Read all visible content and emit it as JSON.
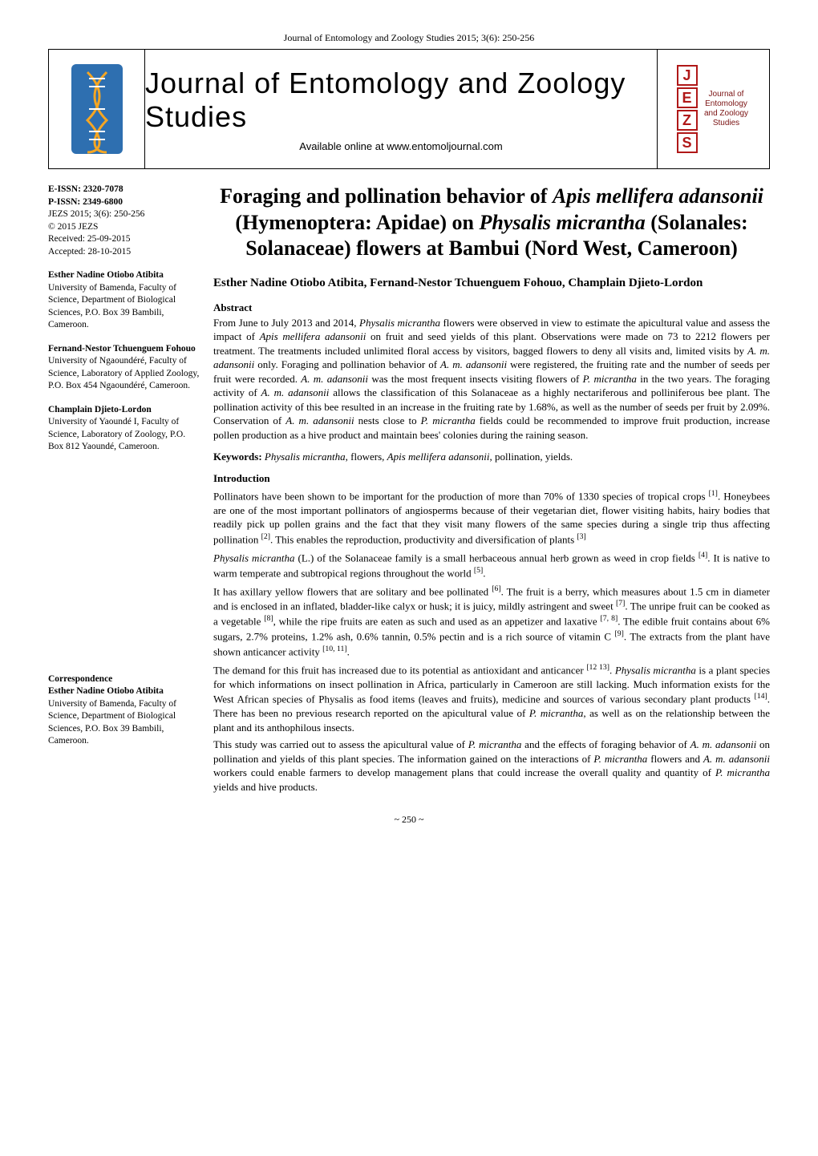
{
  "running_header": "Journal of Entomology and Zoology Studies 2015; 3(6): 250-256",
  "masthead": {
    "title": "Journal of Entomology and Zoology Studies",
    "subtitle": "Available online at www.entomoljournal.com",
    "badge_letters": [
      "J",
      "E",
      "Z",
      "S"
    ],
    "badge_caption": "Journal of Entomology and Zoology Studies",
    "badge_border_color": "#b01818",
    "badge_text_color": "#b01818"
  },
  "sidebar": {
    "issn": {
      "e_issn_label": "E-ISSN: 2320-7078",
      "p_issn_label": "P-ISSN: 2349-6800",
      "citation": "JEZS 2015; 3(6): 250-256",
      "copyright": "© 2015 JEZS",
      "received": "Received: 25-09-2015",
      "accepted": "Accepted: 28-10-2015"
    },
    "authors": [
      {
        "name": "Esther Nadine Otiobo Atibita",
        "affil": "University of Bamenda, Faculty of Science, Department of Biological Sciences, P.O. Box 39 Bambili, Cameroon."
      },
      {
        "name": "Fernand-Nestor Tchuenguem Fohouo",
        "affil": "University of Ngaoundéré, Faculty of Science, Laboratory of Applied Zoology, P.O. Box 454 Ngaoundéré, Cameroon."
      },
      {
        "name": "Champlain Djieto-Lordon",
        "affil": "University of Yaoundé I, Faculty of Science, Laboratory of Zoology, P.O. Box 812 Yaoundé, Cameroon."
      }
    ],
    "correspondence": {
      "label": "Correspondence",
      "name": "Esther Nadine Otiobo Atibita",
      "affil": "University of Bamenda, Faculty of Science, Department of Biological Sciences, P.O. Box 39 Bambili, Cameroon."
    }
  },
  "paper": {
    "title_html": "Foraging and pollination behavior of <em>Apis mellifera adansonii</em> (Hymenoptera: Apidae) on <em>Physalis micrantha</em> (Solanales: Solanaceae) flowers at Bambui (Nord West, Cameroon)",
    "authors_line": "Esther Nadine Otiobo Atibita, Fernand-Nestor Tchuenguem Fohouo, Champlain Djieto-Lordon",
    "abstract_label": "Abstract",
    "abstract_html": "From June to July 2013 and 2014, <em>Physalis micrantha</em> flowers were observed in view to estimate the apicultural value and assess the impact of <em>Apis mellifera adansonii</em> on fruit and seed yields of this plant. Observations were made on 73 to 2212 flowers per treatment. The treatments included unlimited floral access by visitors, bagged flowers to deny all visits and, limited visits by <em>A. m. adansonii</em> only. Foraging and pollination behavior of <em>A. m. adansonii</em> were registered, the fruiting rate and the number of seeds per fruit were recorded. <em>A. m. adansonii</em> was the most frequent insects visiting flowers of <em>P. micrantha</em> in the two years. The foraging activity of <em>A. m. adansonii</em> allows the classification of this Solanaceae as a highly nectariferous and polliniferous bee plant. The pollination activity of this bee resulted in an increase in the fruiting rate by 1.68%, as well as the number of seeds per fruit by 2.09%. Conservation of <em>A. m. adansonii</em> nests close to <em>P. micrantha</em> fields could be recommended to improve fruit production, increase pollen production as a hive product and maintain bees' colonies during the raining season.",
    "keywords_label": "Keywords:",
    "keywords_html": "<em>Physalis micrantha</em>, flowers, <em>Apis mellifera adansonii</em>, pollination, yields.",
    "intro_label": "Introduction",
    "intro_paragraphs_html": [
      "Pollinators have been shown to be important for the production of more than 70% of 1330 species of tropical crops <sup>[1]</sup>. Honeybees are one of the most important pollinators of angiosperms because of their vegetarian diet, flower visiting habits, hairy bodies that readily pick up pollen grains and the fact that they visit many flowers of the same species during a single trip thus affecting pollination <sup>[2]</sup>. This enables the reproduction, productivity and diversification of plants <sup>[3]</sup>",
      "<em>Physalis micrantha</em> (L.) of the Solanaceae family is a small herbaceous annual herb grown as weed in crop fields <sup>[4]</sup>. It is native to warm temperate and subtropical regions throughout the world <sup>[5]</sup>.",
      "It has axillary yellow flowers that are solitary and bee pollinated <sup>[6]</sup>. The fruit is a berry, which measures about 1.5 cm in diameter and is enclosed in an inflated, bladder-like calyx or husk; it is juicy, mildly astringent and sweet <sup>[7]</sup>. The unripe fruit can be cooked as a vegetable <sup>[8]</sup>, while the ripe fruits are eaten as such and used as an appetizer and laxative <sup>[7, 8]</sup>. The edible fruit contains about 6% sugars, 2.7% proteins, 1.2% ash, 0.6% tannin, 0.5% pectin and is a rich source of vitamin C <sup>[9]</sup>. The extracts from the plant have shown anticancer activity <sup>[10, 11]</sup>.",
      "The demand for this fruit has increased due to its potential as antioxidant and anticancer <sup>[12 13]</sup>. <em>Physalis micrantha</em> is a plant species for which informations on insect pollination in Africa, particularly in Cameroon are still lacking. Much information exists for the West African species of Physalis as food items (leaves and fruits), medicine and sources of various secondary plant products <sup>[14]</sup>. There has been no previous research reported on the apicultural value of <em>P. micrantha</em>, as well as on the relationship between the plant and its anthophilous insects.",
      "This study was carried out to assess the apicultural value of <em>P. micrantha</em> and the effects of foraging behavior of <em>A. m. adansonii</em> on pollination and yields of this plant species. The information gained on the interactions of <em>P. micrantha</em> flowers and <em>A. m. adansonii</em> workers could enable farmers to develop management plans that could increase the overall quality and quantity of <em>P. micrantha</em> yields and hive products."
    ]
  },
  "page_number": "~ 250 ~",
  "colors": {
    "text": "#000000",
    "background": "#ffffff",
    "badge": "#b01818"
  }
}
